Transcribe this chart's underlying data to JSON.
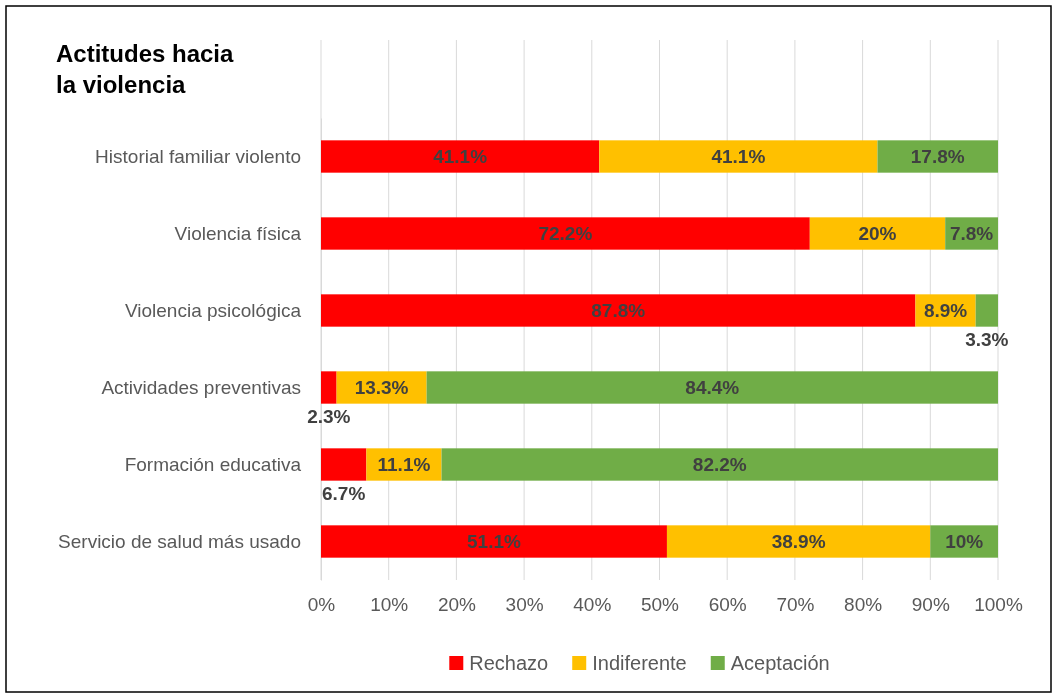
{
  "chart_data": {
    "type": "bar",
    "orientation": "horizontal",
    "stacked": true,
    "title": "Actitudes hacia la violencia",
    "categories": [
      "Historial familiar violento",
      "Violencia física",
      "Violencia psicológica",
      "Actividades preventivas",
      "Formación educativa",
      "Servicio de salud más usado"
    ],
    "series": [
      {
        "name": "Rechazo",
        "color": "#ff0000",
        "values": [
          41.1,
          72.2,
          87.8,
          2.3,
          6.7,
          51.1
        ],
        "value_labels": [
          "41.1%",
          "72.2%",
          "87.8%",
          "2.3%",
          "6.7%",
          "51.1%"
        ]
      },
      {
        "name": "Indiferente",
        "color": "#ffc000",
        "values": [
          41.1,
          20,
          8.9,
          13.3,
          11.1,
          38.9
        ],
        "value_labels": [
          "41.1%",
          "20%",
          "8.9%",
          "13.3%",
          "11.1%",
          "38.9%"
        ]
      },
      {
        "name": "Aceptación",
        "color": "#70ad47",
        "values": [
          17.8,
          7.8,
          3.3,
          84.4,
          82.2,
          10
        ],
        "value_labels": [
          "17.8%",
          "7.8%",
          "3.3%",
          "84.4%",
          "82.2%",
          "10%"
        ]
      }
    ],
    "xlim": [
      0,
      100
    ],
    "xticks": [
      {
        "value": 0,
        "label": "0%"
      },
      {
        "value": 10,
        "label": "10%"
      },
      {
        "value": 20,
        "label": "20%"
      },
      {
        "value": 30,
        "label": "30%"
      },
      {
        "value": 40,
        "label": "40%"
      },
      {
        "value": 50,
        "label": "50%"
      },
      {
        "value": 60,
        "label": "60%"
      },
      {
        "value": 70,
        "label": "70%"
      },
      {
        "value": 80,
        "label": "80%"
      },
      {
        "value": 90,
        "label": "90%"
      },
      {
        "value": 100,
        "label": "100%"
      }
    ],
    "grid": "x",
    "legend": "bottom"
  }
}
